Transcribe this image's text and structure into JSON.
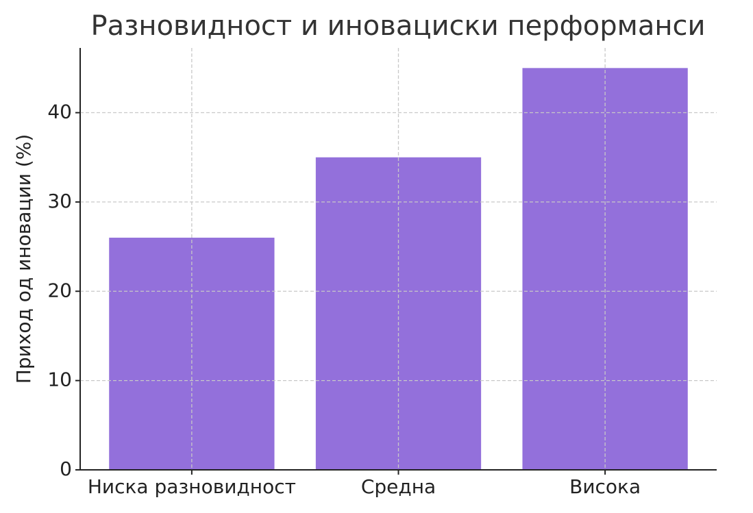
{
  "chart_data": {
    "type": "bar",
    "title": "Разновидност и иновациски перформанси",
    "y_label": "Приход од иновации (%)",
    "categories": [
      "Ниска разновидност",
      "Средна",
      "Висока"
    ],
    "values": [
      26,
      35,
      45
    ],
    "color": "#9370db",
    "ylim": [
      0,
      47.25
    ],
    "yticks": [
      0,
      10,
      20,
      30,
      40
    ],
    "grid": true
  }
}
